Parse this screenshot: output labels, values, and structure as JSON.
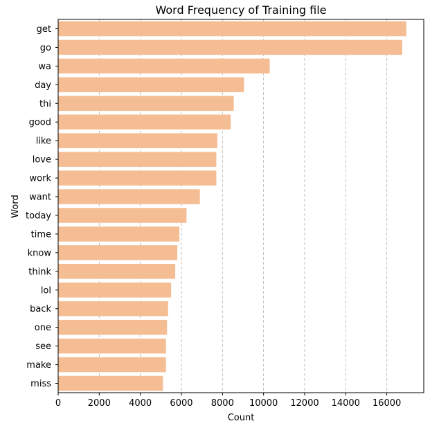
{
  "chart_data": {
    "type": "bar",
    "orientation": "horizontal",
    "title": "Word Frequency of Training file",
    "xlabel": "Count",
    "ylabel": "Word",
    "xlim": [
      0,
      17800
    ],
    "xticks": [
      0,
      2000,
      4000,
      6000,
      8000,
      10000,
      12000,
      14000,
      16000
    ],
    "grid": "x-dashed",
    "bar_color": "#f5bd93",
    "categories": [
      "get",
      "go",
      "wa",
      "day",
      "thi",
      "good",
      "like",
      "love",
      "work",
      "want",
      "today",
      "time",
      "know",
      "think",
      "lol",
      "back",
      "one",
      "see",
      "make",
      "miss"
    ],
    "values": [
      16950,
      16750,
      10300,
      9050,
      8550,
      8400,
      7750,
      7700,
      7700,
      6900,
      6250,
      5900,
      5800,
      5700,
      5500,
      5350,
      5300,
      5250,
      5250,
      5100
    ]
  }
}
